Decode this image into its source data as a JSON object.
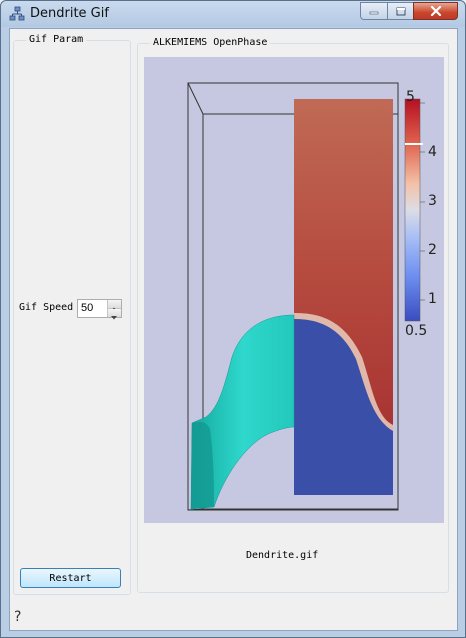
{
  "window": {
    "title": "Dendrite Gif",
    "icon": "app-tree-icon",
    "buttons": [
      "minimize-icon",
      "maximize-icon",
      "close-icon"
    ]
  },
  "left_panel": {
    "group_title": "Gif Param",
    "speed_label": "Gif Speed",
    "speed_value": "50",
    "restart_label": "Restart"
  },
  "right_panel": {
    "group_title": "ALKEMIEMS OpenPhase",
    "filename": "Dendrite.gif"
  },
  "colorbar": {
    "tick_labels": [
      "5",
      "4",
      "3",
      "2",
      "1",
      "0.5"
    ],
    "marker_value": 4.1
  },
  "colors": {
    "viewport_bg": "#c6c8e2",
    "dendrite": "#25cdc2",
    "field_high": "#b44e3e",
    "field_low": "#3a4fa7"
  },
  "footer": {
    "help_icon": "help-icon",
    "help_glyph": "?"
  }
}
